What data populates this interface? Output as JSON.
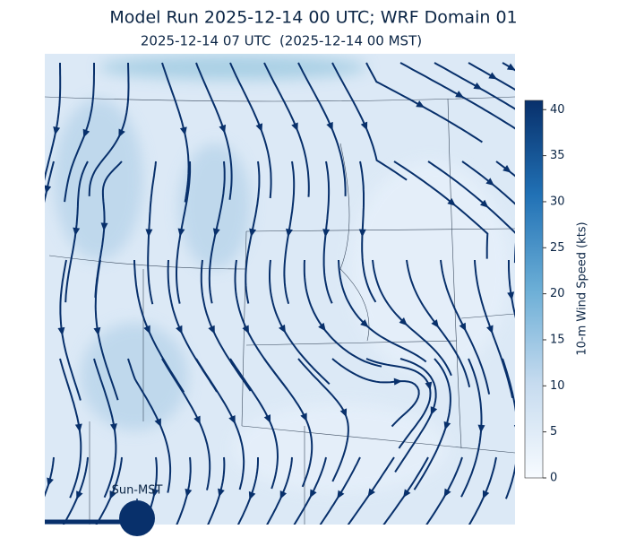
{
  "title": "Model Run 2025-12-14 00 UTC; WRF Domain 01",
  "subtitle": "2025-12-14 07 UTC  (2025-12-14 00 MST)",
  "colorbar": {
    "label": "10-m Wind Speed (kts)",
    "range": [
      0,
      41
    ],
    "ticks": [
      0,
      5,
      10,
      15,
      20,
      25,
      30,
      35,
      40
    ]
  },
  "timeline": {
    "label": "Sun-MST"
  }
}
